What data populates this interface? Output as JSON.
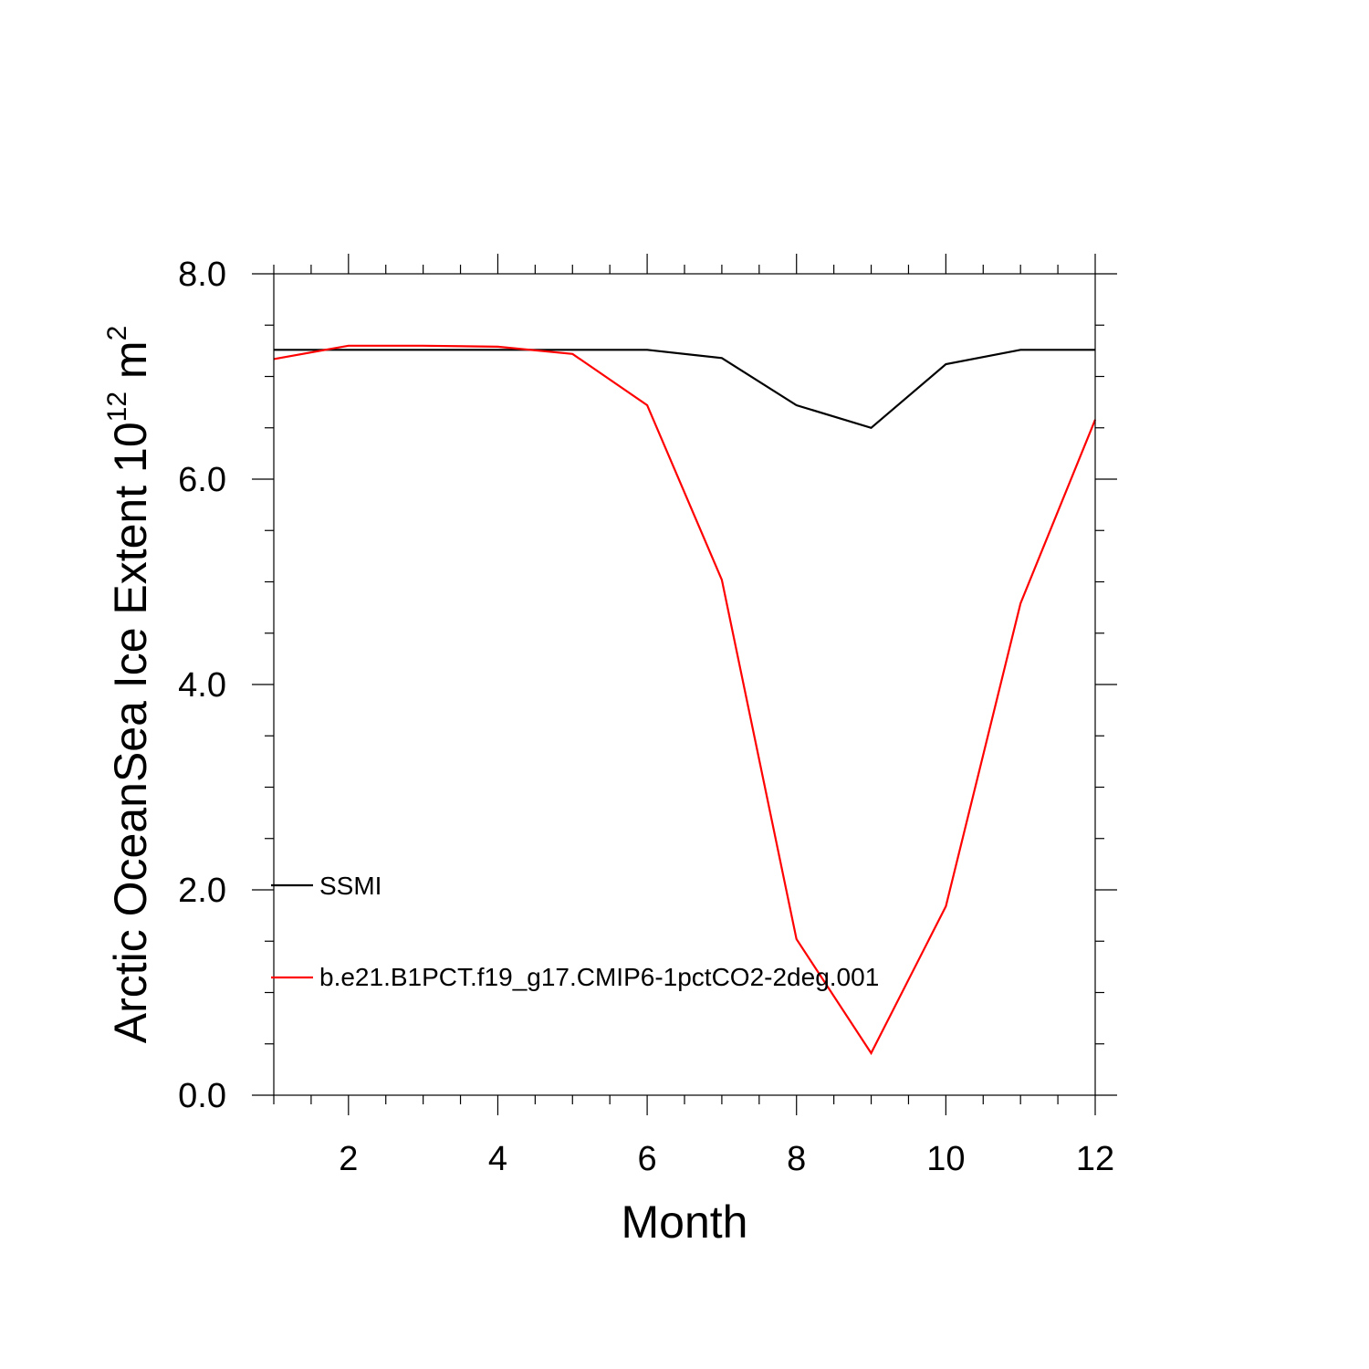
{
  "chart_data": {
    "type": "line",
    "xlabel": "Month",
    "ylabel": {
      "text": "Arctic OceanSea Ice Extent 10",
      "sup": "12",
      "unit": " m",
      "unit_sup": "2"
    },
    "xlim": [
      1,
      12
    ],
    "ylim": [
      0,
      8
    ],
    "x_major_ticks": [
      2,
      4,
      6,
      8,
      10,
      12
    ],
    "x_tick_labels": [
      "2",
      "4",
      "6",
      "8",
      "10",
      "12"
    ],
    "x_minor_step": 0.5,
    "y_major_ticks": [
      0,
      2,
      4,
      6,
      8
    ],
    "y_tick_labels": [
      "0.0",
      "2.0",
      "4.0",
      "6.0",
      "8.0"
    ],
    "y_minor_step": 0.5,
    "grid": false,
    "legend_position": "lower-left inside",
    "x": [
      1,
      2,
      3,
      4,
      5,
      6,
      7,
      8,
      9,
      10,
      11,
      12
    ],
    "series": [
      {
        "name": "SSMI",
        "color": "#000000",
        "values": [
          7.26,
          7.26,
          7.26,
          7.26,
          7.26,
          7.26,
          7.18,
          6.72,
          6.5,
          7.12,
          7.26,
          7.26
        ]
      },
      {
        "name": "b.e21.B1PCT.f19_g17.CMIP6-1pctCO2-2deg.001",
        "color": "#ff0000",
        "values": [
          7.17,
          7.3,
          7.3,
          7.29,
          7.22,
          6.72,
          5.02,
          1.52,
          0.41,
          1.84,
          4.79,
          6.58
        ]
      }
    ]
  }
}
